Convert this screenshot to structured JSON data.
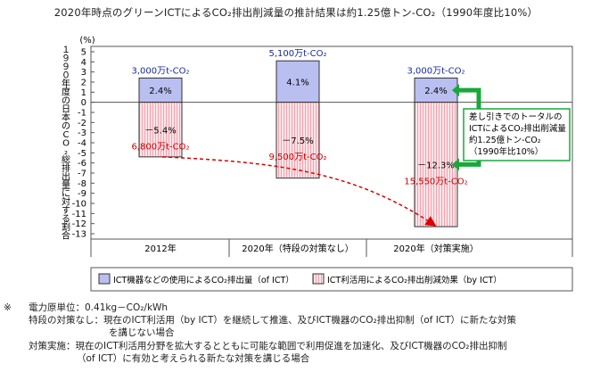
{
  "title": "2020年時点のグリーンICTによるCO₂排出削減量の推計結果は約1.25億トン-CO₂（1990年度比10%）",
  "chart_data": {
    "type": "bar",
    "stacked": "diverging",
    "ylabel": "１９９０年度の日本のCO₂総排出量に対する割合",
    "yunit": "(%)",
    "ylim": [
      -13,
      5
    ],
    "yticks": [
      5,
      4,
      3,
      2,
      1,
      0,
      -1,
      -2,
      -3,
      -4,
      -5,
      -6,
      -7,
      -8,
      -9,
      -10,
      -11,
      -12,
      -13
    ],
    "grid": false,
    "categories": [
      "2012年",
      "2020年（特段の対策なし）",
      "2020年（対策実施）"
    ],
    "series": [
      {
        "name": "ICT機器などの使用によるCO₂排出量（of ICT）",
        "color": "#b9bff0",
        "values": [
          2.4,
          4.1,
          2.4
        ],
        "labels": [
          "2.4%",
          "4.1%",
          "2.4%"
        ],
        "amounts": [
          "3,000万t-CO₂",
          "5,100万t-CO₂",
          "3,000万t-CO₂"
        ]
      },
      {
        "name": "ICT利活用によるCO₂排出削減効果（by ICT）",
        "color": "#f7bfc6",
        "values": [
          -5.4,
          -7.5,
          -12.3
        ],
        "labels": [
          "－5.4%",
          "－7.5%",
          "－12.3%"
        ],
        "amounts": [
          "6,800万t-CO₂",
          "9,500万t-CO₂",
          "15,550万t-CO₂"
        ]
      }
    ],
    "legend_position": "bottom",
    "annotation": [
      "差し引きでのトータルの",
      "ICTによるCO₂排出削減量",
      "約1.25億トン-CO₂",
      "（1990年比10%）"
    ]
  },
  "notes": [
    {
      "mark": "※",
      "label": "電力原単位：",
      "text": "0.41kg－CO₂/kWh"
    },
    {
      "label": "特段の対策なし：",
      "text": "現在のICT利活用（by ICT）を継続して推進、及びICT機器のCO₂排出抑制（of ICT）に新たな対策"
    },
    {
      "text": "を講じない場合"
    },
    {
      "label": "対策実施：",
      "text": "現在のICT利活用分野を拡大するとともに可能な範囲で利用促進を加速化、及びICT機器のCO₂排出抑制"
    },
    {
      "text": "（of ICT）に有効と考えられる新たな対策を講じる場合"
    }
  ],
  "colors": {
    "arrow": "#dd0000",
    "bracket": "#18a83a",
    "bar_label": "#cc0000",
    "amount_label": "#1a2a9a"
  }
}
